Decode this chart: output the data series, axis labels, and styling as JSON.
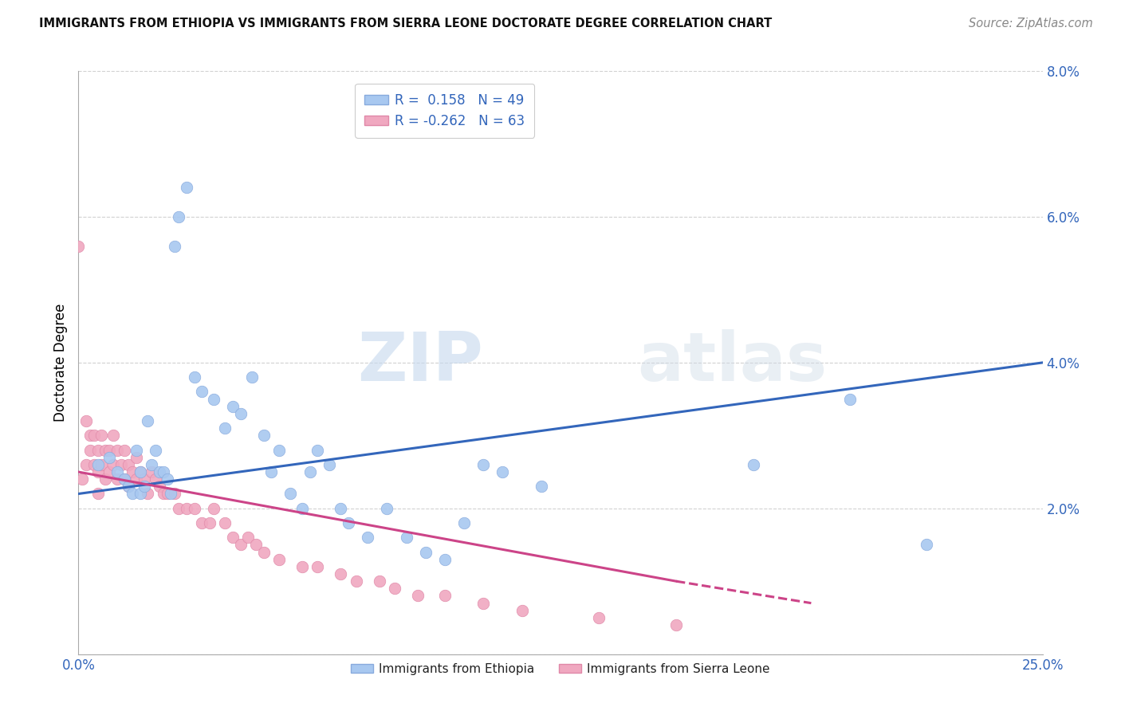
{
  "title": "IMMIGRANTS FROM ETHIOPIA VS IMMIGRANTS FROM SIERRA LEONE DOCTORATE DEGREE CORRELATION CHART",
  "source": "Source: ZipAtlas.com",
  "ylabel": "Doctorate Degree",
  "xlim": [
    0.0,
    0.25
  ],
  "ylim": [
    0.0,
    0.08
  ],
  "R_ethiopia": 0.158,
  "N_ethiopia": 49,
  "R_sierraleone": -0.262,
  "N_sierraleone": 63,
  "color_ethiopia": "#a8c8f0",
  "color_sierraleone": "#f0a8c0",
  "line_color_ethiopia": "#3366bb",
  "line_color_sierraleone": "#cc4488",
  "watermark_zip": "ZIP",
  "watermark_atlas": "atlas",
  "ethiopia_x": [
    0.005,
    0.008,
    0.01,
    0.012,
    0.013,
    0.014,
    0.015,
    0.016,
    0.016,
    0.017,
    0.018,
    0.019,
    0.02,
    0.021,
    0.022,
    0.023,
    0.024,
    0.025,
    0.026,
    0.028,
    0.03,
    0.032,
    0.035,
    0.038,
    0.04,
    0.042,
    0.045,
    0.048,
    0.05,
    0.052,
    0.055,
    0.058,
    0.06,
    0.062,
    0.065,
    0.068,
    0.07,
    0.075,
    0.08,
    0.085,
    0.09,
    0.095,
    0.1,
    0.105,
    0.11,
    0.12,
    0.175,
    0.2,
    0.22
  ],
  "ethiopia_y": [
    0.026,
    0.027,
    0.025,
    0.024,
    0.023,
    0.022,
    0.028,
    0.025,
    0.022,
    0.023,
    0.032,
    0.026,
    0.028,
    0.025,
    0.025,
    0.024,
    0.022,
    0.056,
    0.06,
    0.064,
    0.038,
    0.036,
    0.035,
    0.031,
    0.034,
    0.033,
    0.038,
    0.03,
    0.025,
    0.028,
    0.022,
    0.02,
    0.025,
    0.028,
    0.026,
    0.02,
    0.018,
    0.016,
    0.02,
    0.016,
    0.014,
    0.013,
    0.018,
    0.026,
    0.025,
    0.023,
    0.026,
    0.035,
    0.015
  ],
  "sierraleone_x": [
    0.0,
    0.001,
    0.002,
    0.002,
    0.003,
    0.003,
    0.004,
    0.004,
    0.005,
    0.005,
    0.005,
    0.006,
    0.006,
    0.007,
    0.007,
    0.008,
    0.008,
    0.009,
    0.009,
    0.01,
    0.01,
    0.011,
    0.012,
    0.012,
    0.013,
    0.013,
    0.014,
    0.015,
    0.015,
    0.016,
    0.017,
    0.018,
    0.019,
    0.02,
    0.021,
    0.022,
    0.023,
    0.025,
    0.026,
    0.028,
    0.03,
    0.032,
    0.034,
    0.035,
    0.038,
    0.04,
    0.042,
    0.044,
    0.046,
    0.048,
    0.052,
    0.058,
    0.062,
    0.068,
    0.072,
    0.078,
    0.082,
    0.088,
    0.095,
    0.105,
    0.115,
    0.135,
    0.155
  ],
  "sierraleone_y": [
    0.056,
    0.024,
    0.032,
    0.026,
    0.03,
    0.028,
    0.03,
    0.026,
    0.028,
    0.025,
    0.022,
    0.03,
    0.026,
    0.028,
    0.024,
    0.028,
    0.025,
    0.03,
    0.026,
    0.028,
    0.024,
    0.026,
    0.028,
    0.024,
    0.026,
    0.023,
    0.025,
    0.027,
    0.024,
    0.025,
    0.024,
    0.022,
    0.025,
    0.024,
    0.023,
    0.022,
    0.022,
    0.022,
    0.02,
    0.02,
    0.02,
    0.018,
    0.018,
    0.02,
    0.018,
    0.016,
    0.015,
    0.016,
    0.015,
    0.014,
    0.013,
    0.012,
    0.012,
    0.011,
    0.01,
    0.01,
    0.009,
    0.008,
    0.008,
    0.007,
    0.006,
    0.005,
    0.004
  ]
}
